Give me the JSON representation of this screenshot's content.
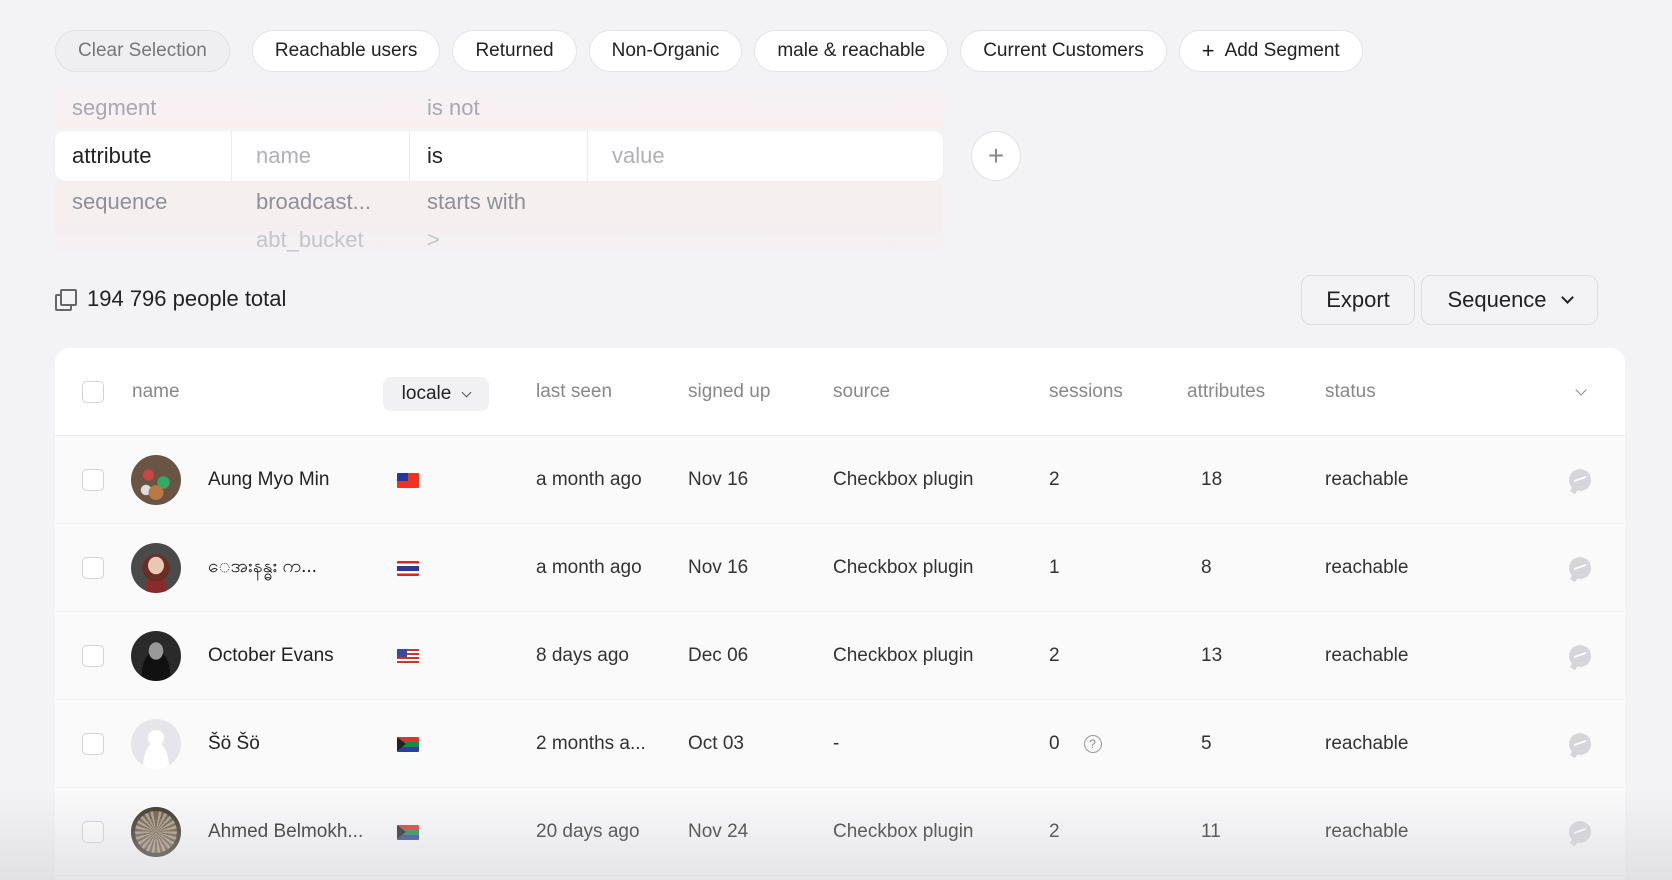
{
  "segments": {
    "clear_label": "Clear Selection",
    "items": [
      "Reachable users",
      "Returned",
      "Non-Organic",
      "male & reachable",
      "Current Customers"
    ],
    "add_label": "Add Segment",
    "add_symbol": "+"
  },
  "filter_picker": {
    "above": {
      "type": "segment",
      "operator": "is not"
    },
    "active": {
      "type": "attribute",
      "name_placeholder": "name",
      "operator": "is",
      "value_placeholder": "value"
    },
    "below_1": {
      "type": "sequence",
      "name": "broadcast...",
      "operator": "starts with"
    },
    "below_2": {
      "name": "abt_bucket",
      "operator": ">"
    },
    "add_symbol": "+"
  },
  "summary": {
    "total": "194 796 people total"
  },
  "actions": {
    "export": "Export",
    "sequence": "Sequence"
  },
  "table": {
    "columns": {
      "name": "name",
      "locale": "locale",
      "last_seen": "last seen",
      "signed_up": "signed up",
      "source": "source",
      "sessions": "sessions",
      "attributes": "attributes",
      "status": "status"
    },
    "rows": [
      {
        "name": "Aung Myo Min",
        "locale_flag": "taiwan-flag",
        "last_seen": "a month ago",
        "signed_up": "Nov 16",
        "source": "Checkbox plugin",
        "sessions": "2",
        "attributes": "18",
        "status": "reachable"
      },
      {
        "name": "ေအးနန္ဓး က...",
        "locale_flag": "thailand-flag",
        "last_seen": "a month ago",
        "signed_up": "Nov 16",
        "source": "Checkbox plugin",
        "sessions": "1",
        "attributes": "8",
        "status": "reachable"
      },
      {
        "name": "October Evans",
        "locale_flag": "usa-flag",
        "last_seen": "8 days ago",
        "signed_up": "Dec 06",
        "source": "Checkbox plugin",
        "sessions": "2",
        "attributes": "13",
        "status": "reachable"
      },
      {
        "name": "Šö Šö",
        "locale_flag": "south-africa-flag",
        "last_seen": "2 months a...",
        "signed_up": "Oct 03",
        "source": "-",
        "sessions": "0",
        "attributes": "5",
        "status": "reachable"
      },
      {
        "name": "Ahmed Belmokh...",
        "locale_flag": "south-africa-flag",
        "last_seen": "20 days ago",
        "signed_up": "Nov 24",
        "source": "Checkbox plugin",
        "sessions": "2",
        "attributes": "11",
        "status": "reachable"
      }
    ]
  },
  "colors": {
    "background": "#f3f3f5",
    "panel": "#ffffff",
    "muted_text": "#888888"
  }
}
